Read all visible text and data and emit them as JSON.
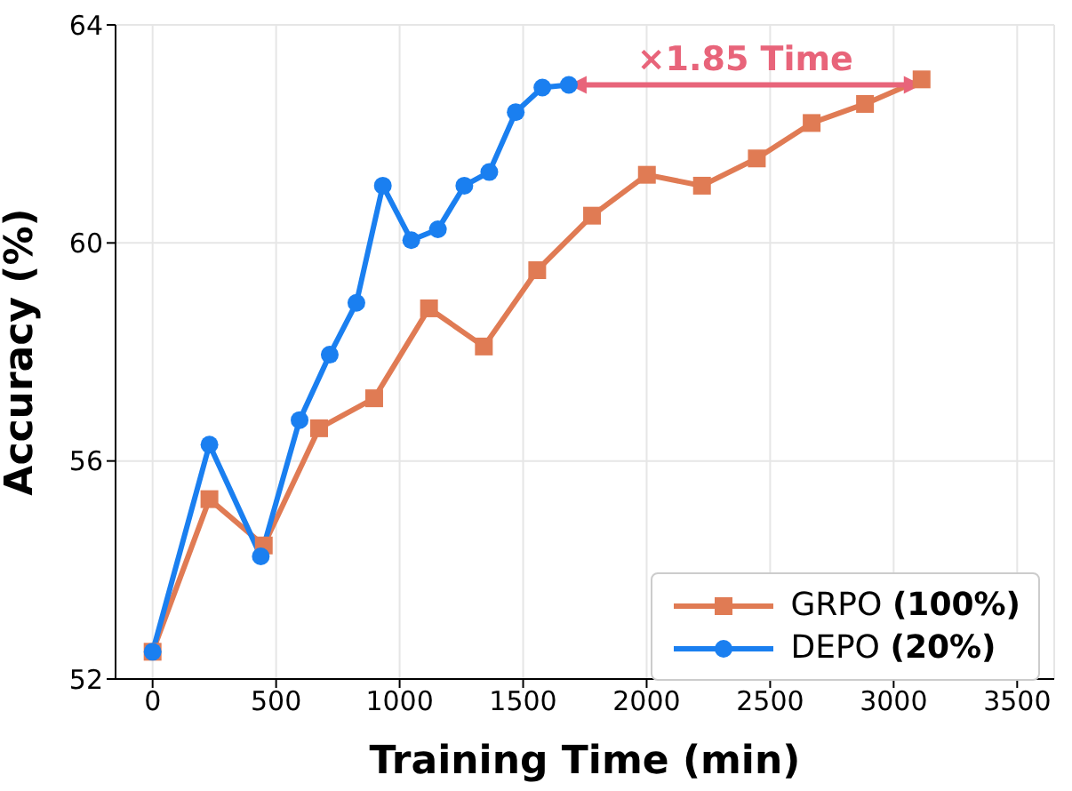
{
  "chart_data": {
    "type": "line",
    "xlabel": "Training Time (min)",
    "ylabel": "Accuracy (%)",
    "xlim": [
      -150,
      3650
    ],
    "xticks": [
      0,
      500,
      1000,
      1500,
      2000,
      2500,
      3000,
      3500
    ],
    "ylim": [
      52,
      64
    ],
    "yticks": [
      52,
      56,
      60,
      64
    ],
    "grid": true,
    "legend": "bottom right",
    "line_style": "solid",
    "annotations": [
      "×1.85 Time"
    ],
    "series": [
      {
        "name": "GRPO (100%)",
        "color": "#e07b54",
        "marker": "square",
        "x": [
          0,
          230,
          450,
          674,
          897,
          1119,
          1341,
          1557,
          1779,
          2001,
          2224,
          2446,
          2668,
          2884,
          3113
        ],
        "values": [
          52.5,
          55.3,
          54.45,
          56.6,
          57.15,
          58.8,
          58.1,
          59.5,
          60.5,
          61.25,
          61.05,
          61.55,
          62.2,
          62.55,
          63.0
        ]
      },
      {
        "name": "DEPO (20%)",
        "color": "#1a7ff0",
        "marker": "circle",
        "x": [
          0,
          230,
          438,
          595,
          717,
          825,
          932,
          1047,
          1155,
          1262,
          1363,
          1470,
          1578,
          1685
        ],
        "values": [
          52.5,
          56.3,
          54.25,
          56.75,
          57.95,
          58.9,
          61.05,
          60.05,
          60.25,
          61.05,
          61.3,
          62.4,
          62.85,
          62.9
        ]
      }
    ]
  }
}
